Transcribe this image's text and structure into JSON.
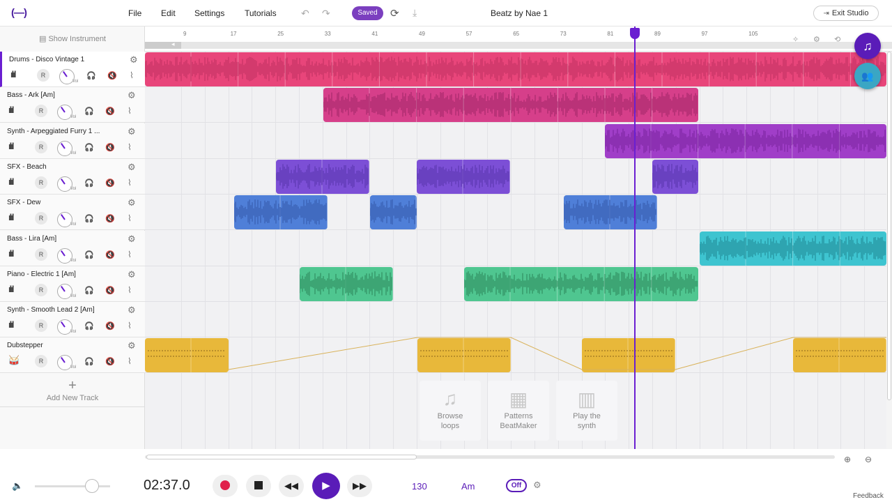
{
  "header": {
    "logo": "(—)",
    "menu": [
      "File",
      "Edit",
      "Settings",
      "Tutorials"
    ],
    "saved_label": "Saved",
    "project_title": "Beatz by Nae 1",
    "exit_label": "Exit Studio"
  },
  "sidebar": {
    "show_instrument": "Show Instrument",
    "add_track": "Add New Track",
    "vol_label": "Vol",
    "rec_label": "R",
    "tracks": [
      {
        "name": "Drums - Disco Vintage 1"
      },
      {
        "name": "Bass - Ark [Am]"
      },
      {
        "name": "Synth - Arpeggiated Furry 1 ..."
      },
      {
        "name": "SFX - Beach"
      },
      {
        "name": "SFX - Dew"
      },
      {
        "name": "Bass - Lira [Am]"
      },
      {
        "name": "Piano - Electric 1 [Am]"
      },
      {
        "name": "Synth - Smooth Lead 2 [Am]"
      },
      {
        "name": "Dubstepper"
      }
    ]
  },
  "ruler": {
    "bars": [
      "9",
      "17",
      "25",
      "33",
      "41",
      "49",
      "57",
      "65",
      "73",
      "81",
      "89",
      "97",
      "105"
    ]
  },
  "helpers": [
    {
      "line1": "Browse",
      "line2": "loops"
    },
    {
      "line1": "Patterns",
      "line2": "BeatMaker"
    },
    {
      "line1": "Play the",
      "line2": "synth"
    }
  ],
  "transport": {
    "time": "02:37.0",
    "bpm": "130",
    "key": "Am",
    "metronome": "Off"
  },
  "footer": {
    "feedback": "Feedback"
  },
  "colors": {
    "accent": "#5a1cb8",
    "drums": "#e8457a",
    "bass": "#d63f8a",
    "synth": "#a03ec8",
    "sfx_beach": "#7c4fd6",
    "sfx_dew": "#4f7fd8",
    "bass_lira": "#3ec4d0",
    "piano": "#4fc690",
    "dubstep": "#e8b83a"
  }
}
